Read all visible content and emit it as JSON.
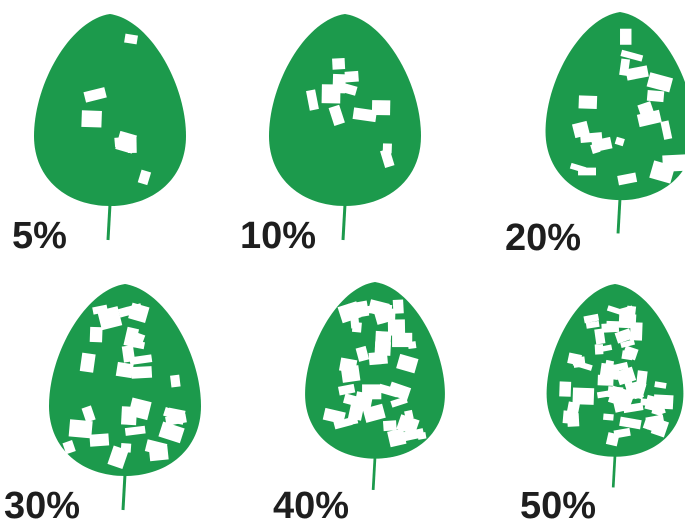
{
  "panels": [
    {
      "label": "5%"
    },
    {
      "label": "10%"
    },
    {
      "label": "20%"
    },
    {
      "label": "30%"
    },
    {
      "label": "40%"
    },
    {
      "label": "50%"
    }
  ]
}
